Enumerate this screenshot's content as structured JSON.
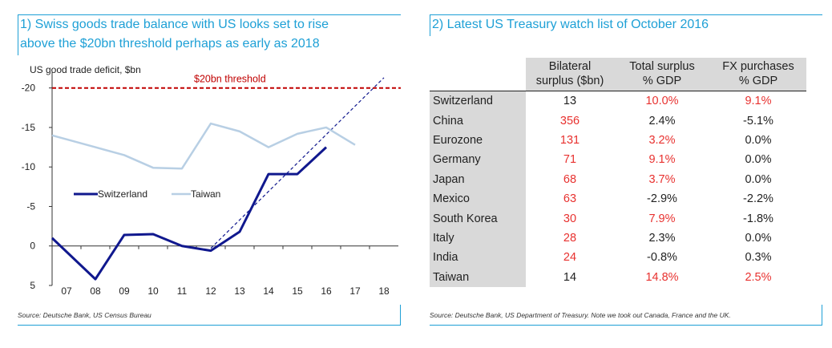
{
  "left": {
    "title_line1": "1) Swiss goods trade balance with US looks set to rise",
    "title_line2": "above the $20bn threshold perhaps as early as 2018",
    "source": "Source: Deutsche Bank, US Census Bureau"
  },
  "right": {
    "title": "2) Latest US Treasury watch list of October 2016",
    "source": "Source: Deutsche Bank, US Department of Treasury. Note we took out Canada, France and the UK."
  },
  "colors": {
    "accent": "#1ea0d6",
    "switzerland": "#10188e",
    "taiwan": "#b8cfe4",
    "threshold": "#c00000",
    "highlight_red": "#e8312f",
    "table_shade": "#d9d9d9"
  },
  "chart_data": [
    {
      "type": "line",
      "title": "",
      "ylabel": "US good trade deficit, $bn",
      "ylim": [
        5,
        -22
      ],
      "yticks": [
        -20,
        -15,
        -10,
        -5,
        0,
        5
      ],
      "x": [
        "07",
        "08",
        "09",
        "10",
        "11",
        "12",
        "13",
        "14",
        "15",
        "16",
        "17",
        "18"
      ],
      "series": [
        {
          "name": "Switzerland",
          "values": [
            -1.0,
            4.2,
            -1.4,
            -1.5,
            0.0,
            0.6,
            -1.8,
            -9.1,
            -9.1,
            -12.5,
            null,
            null
          ]
        },
        {
          "name": "Taiwan",
          "values": [
            -14.0,
            -12.5,
            -11.5,
            -9.9,
            -9.8,
            -15.5,
            -14.5,
            -12.5,
            -14.2,
            -15.0,
            -12.8,
            null
          ]
        }
      ],
      "trend": {
        "style": "dashed",
        "from": {
          "x": "12",
          "y": 0.3
        },
        "to": {
          "x": "18",
          "y": -21.3
        }
      },
      "threshold": {
        "value": -20,
        "label": "$20bn threshold"
      },
      "legend_position": "center-left",
      "grid": false
    },
    {
      "type": "table",
      "columns": [
        "",
        "Bilateral surplus ($bn)",
        "Total surplus % GDP",
        "FX purchases % GDP"
      ],
      "headers": [
        {
          "line1": "",
          "line2": ""
        },
        {
          "line1": "Bilateral",
          "line2": "surplus ($bn)"
        },
        {
          "line1": "Total surplus",
          "line2": "% GDP"
        },
        {
          "line1": "FX purchases",
          "line2": "% GDP"
        }
      ],
      "rows": [
        {
          "country": "Switzerland",
          "bilateral": "13",
          "total": "10.0%",
          "fx": "9.1%",
          "red": [
            false,
            true,
            true
          ]
        },
        {
          "country": "China",
          "bilateral": "356",
          "total": "2.4%",
          "fx": "-5.1%",
          "red": [
            true,
            false,
            false
          ]
        },
        {
          "country": "Eurozone",
          "bilateral": "131",
          "total": "3.2%",
          "fx": "0.0%",
          "red": [
            true,
            true,
            false
          ]
        },
        {
          "country": "Germany",
          "bilateral": "71",
          "total": "9.1%",
          "fx": "0.0%",
          "red": [
            true,
            true,
            false
          ]
        },
        {
          "country": "Japan",
          "bilateral": "68",
          "total": "3.7%",
          "fx": "0.0%",
          "red": [
            true,
            true,
            false
          ]
        },
        {
          "country": "Mexico",
          "bilateral": "63",
          "total": "-2.9%",
          "fx": "-2.2%",
          "red": [
            true,
            false,
            false
          ]
        },
        {
          "country": "South Korea",
          "bilateral": "30",
          "total": "7.9%",
          "fx": "-1.8%",
          "red": [
            true,
            true,
            false
          ]
        },
        {
          "country": "Italy",
          "bilateral": "28",
          "total": "2.3%",
          "fx": "0.0%",
          "red": [
            true,
            false,
            false
          ]
        },
        {
          "country": "India",
          "bilateral": "24",
          "total": "-0.8%",
          "fx": "0.3%",
          "red": [
            true,
            false,
            false
          ]
        },
        {
          "country": "Taiwan",
          "bilateral": "14",
          "total": "14.8%",
          "fx": "2.5%",
          "red": [
            false,
            true,
            true
          ]
        }
      ]
    }
  ]
}
